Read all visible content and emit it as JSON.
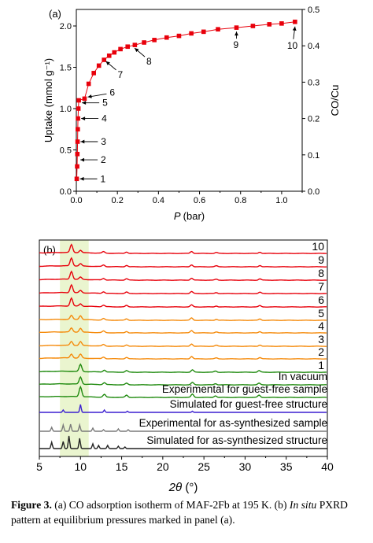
{
  "chart_data": [
    {
      "panel": "(a)",
      "type": "scatter",
      "xlabel": "P (bar)",
      "ylabel_left": "Uptake (mmol g⁻¹)",
      "ylabel_right": "CO/Cu",
      "xlim": [
        0,
        1.1
      ],
      "ylim_left": [
        0,
        2.2
      ],
      "ylim_right": [
        0,
        0.5
      ],
      "xticks": [
        0.0,
        0.2,
        0.4,
        0.6,
        0.8,
        1.0
      ],
      "yticks_left": [
        0.0,
        0.5,
        1.0,
        1.5,
        2.0
      ],
      "yticks_right": [
        0.0,
        0.1,
        0.2,
        0.3,
        0.4,
        0.5
      ],
      "marker_color": "#e8000b",
      "line_color": "#e8000b",
      "grid": false,
      "points": [
        [
          0.002,
          0.15
        ],
        [
          0.004,
          0.3
        ],
        [
          0.005,
          0.45
        ],
        [
          0.006,
          0.6
        ],
        [
          0.007,
          0.75
        ],
        [
          0.008,
          0.88
        ],
        [
          0.01,
          1.0
        ],
        [
          0.012,
          1.1
        ],
        [
          0.04,
          1.12
        ],
        [
          0.06,
          1.3
        ],
        [
          0.085,
          1.43
        ],
        [
          0.11,
          1.52
        ],
        [
          0.135,
          1.59
        ],
        [
          0.16,
          1.64
        ],
        [
          0.185,
          1.68
        ],
        [
          0.215,
          1.72
        ],
        [
          0.25,
          1.75
        ],
        [
          0.285,
          1.77
        ],
        [
          0.33,
          1.8
        ],
        [
          0.38,
          1.83
        ],
        [
          0.44,
          1.86
        ],
        [
          0.5,
          1.88
        ],
        [
          0.56,
          1.91
        ],
        [
          0.62,
          1.93
        ],
        [
          0.69,
          1.96
        ],
        [
          0.78,
          1.98
        ],
        [
          0.86,
          2.0
        ],
        [
          0.94,
          2.02
        ],
        [
          1.0,
          2.03
        ],
        [
          1.065,
          2.05
        ]
      ],
      "annotations": [
        {
          "label": "1",
          "x": 0.002,
          "y": 0.15
        },
        {
          "label": "2",
          "x": 0.004,
          "y": 0.38
        },
        {
          "label": "3",
          "x": 0.005,
          "y": 0.6
        },
        {
          "label": "4",
          "x": 0.008,
          "y": 0.88
        },
        {
          "label": "5",
          "x": 0.012,
          "y": 1.07
        },
        {
          "label": "6",
          "x": 0.04,
          "y": 1.14
        },
        {
          "label": "7",
          "x": 0.14,
          "y": 1.62
        },
        {
          "label": "8",
          "x": 0.28,
          "y": 1.78
        },
        {
          "label": "9",
          "x": 0.78,
          "y": 1.98
        },
        {
          "label": "10",
          "x": 1.065,
          "y": 2.05
        }
      ]
    },
    {
      "panel": "(b)",
      "type": "line",
      "xlabel": "2θ (°)",
      "xlim": [
        5,
        40
      ],
      "xticks": [
        5,
        10,
        15,
        20,
        25,
        30,
        35,
        40
      ],
      "highlight_range": [
        7.5,
        11
      ],
      "highlight_color": "#eaf5cf",
      "series": [
        {
          "name": "10",
          "color": "#e8000b"
        },
        {
          "name": "9",
          "color": "#e8000b"
        },
        {
          "name": "8",
          "color": "#e8000b"
        },
        {
          "name": "7",
          "color": "#e8000b"
        },
        {
          "name": "6",
          "color": "#e8000b"
        },
        {
          "name": "5",
          "color": "#f58a0a"
        },
        {
          "name": "4",
          "color": "#f58a0a"
        },
        {
          "name": "3",
          "color": "#f58a0a"
        },
        {
          "name": "2",
          "color": "#f58a0a"
        },
        {
          "name": "1",
          "color": "#1f8a0e"
        },
        {
          "name": "In vacuum",
          "color": "#1f8a0e"
        },
        {
          "name": "Experimental for guest-free sample",
          "color": "#1f8a0e"
        },
        {
          "name": "Simulated for guest-free structure",
          "color": "#3b1fd0"
        },
        {
          "name": "Experimental for as-synthesized sample",
          "color": "#7a7a7a"
        },
        {
          "name": "Simulated for as-synthesized structure",
          "color": "#222222"
        }
      ]
    }
  ],
  "caption": {
    "fig_label": "Figure 3.",
    "text_a": " (a) CO adsorption isotherm of MAF-2Fb at 195 K. (b) ",
    "in_situ": "In situ",
    "text_b": " PXRD pattern at equilibrium pressures marked in panel (a)."
  }
}
